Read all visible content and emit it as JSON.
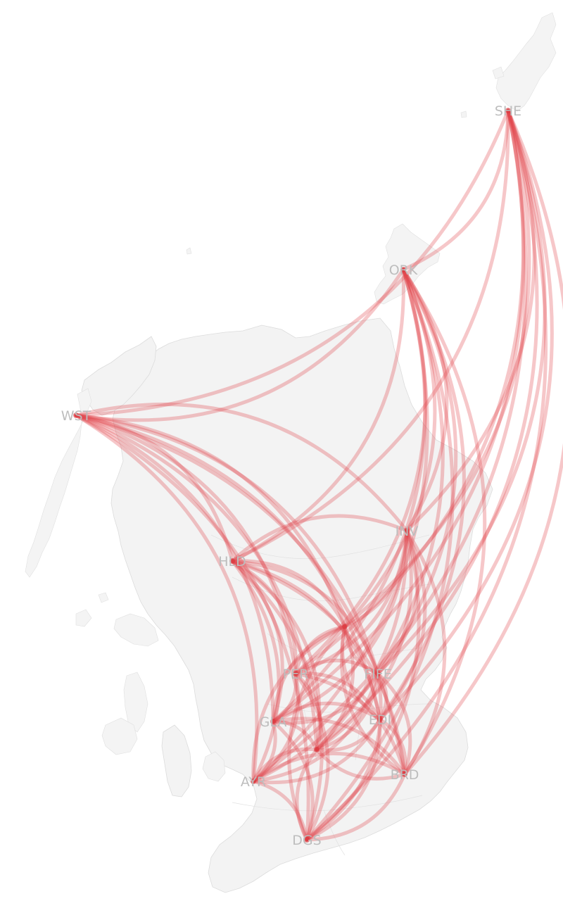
{
  "map": {
    "region": "Scotland",
    "land_color": "#f3f3f3",
    "border_color": "#dcdcdc",
    "flow_color": "#e0474c",
    "label_color": "#bdbdbd"
  },
  "nodes": [
    {
      "id": "SHE",
      "label": "SHE"
    },
    {
      "id": "ORK",
      "label": "ORK"
    },
    {
      "id": "WST",
      "label": "WST"
    },
    {
      "id": "HLD",
      "label": "HLD"
    },
    {
      "id": "INV",
      "label": "INV"
    },
    {
      "id": "PER",
      "label": "PER"
    },
    {
      "id": "FIFE",
      "label": "FIFE"
    },
    {
      "id": "GLA",
      "label": "GLA"
    },
    {
      "id": "EDI",
      "label": "EDI"
    },
    {
      "id": "AYR",
      "label": "AYR"
    },
    {
      "id": "BRD",
      "label": "BRD"
    },
    {
      "id": "DGS",
      "label": "DGS"
    },
    {
      "id": "TAY",
      "label": ""
    },
    {
      "id": "LAN",
      "label": ""
    }
  ],
  "flows": "all-pairs"
}
